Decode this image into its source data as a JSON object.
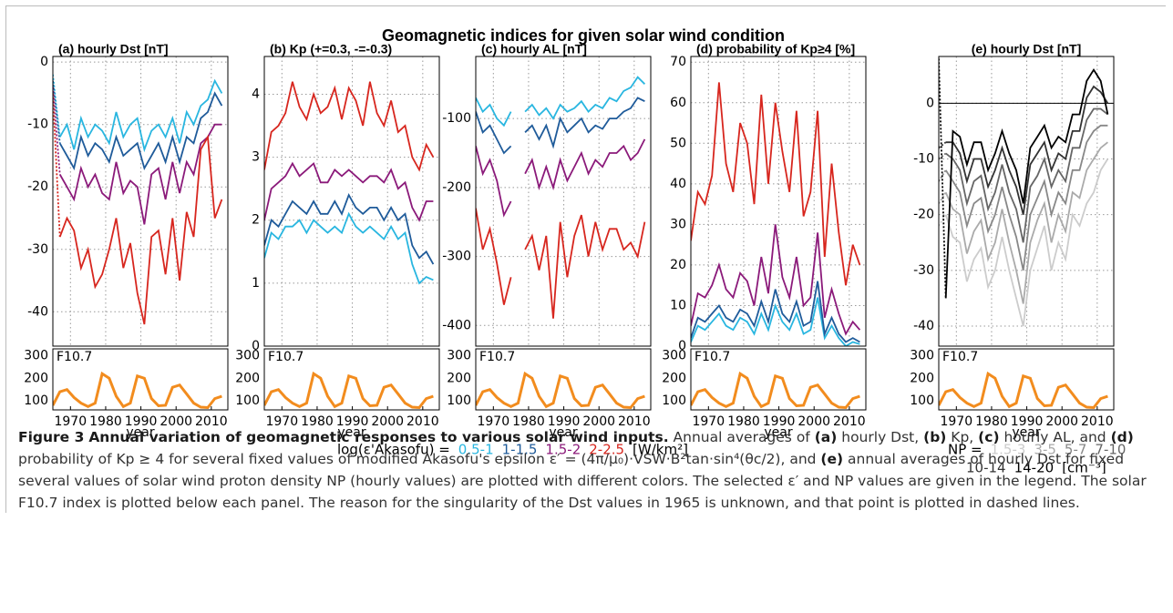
{
  "title": "Geomagnetic indices for given solar wind condition",
  "chart_data": [
    {
      "type": "line",
      "title": "(a) hourly Dst [nT]",
      "xlabel": "year",
      "dashed_first": true,
      "grid": true,
      "x": [
        1965,
        1967,
        1969,
        1971,
        1973,
        1975,
        1977,
        1979,
        1981,
        1983,
        1985,
        1987,
        1989,
        1991,
        1993,
        1995,
        1997,
        1999,
        2001,
        2003,
        2005,
        2007,
        2009,
        2011,
        2013
      ],
      "xlim": [
        1965,
        2014.7
      ],
      "xticks": [
        1970,
        1980,
        1990,
        2000,
        2010
      ],
      "ylim": [
        -45.5,
        0.9
      ],
      "yticks": [
        0,
        -10,
        -20,
        -30,
        -40
      ],
      "series": [
        {
          "name": "0.5-1",
          "color": "#29b6e0",
          "values": [
            -2,
            -12,
            -10,
            -14,
            -9,
            -12,
            -10,
            -11,
            -13,
            -8,
            -12,
            -10,
            -9,
            -14,
            -11,
            -10,
            -12,
            -9,
            -13,
            -8,
            -10,
            -7,
            -6,
            -3,
            -5
          ]
        },
        {
          "name": "1-1.5",
          "color": "#1f5b9a",
          "values": [
            -3,
            -13,
            -15,
            -17,
            -12,
            -15,
            -13,
            -14,
            -16,
            -12,
            -15,
            -14,
            -13,
            -17,
            -15,
            -13,
            -16,
            -12,
            -16,
            -12,
            -13,
            -9,
            -8,
            -5,
            -7
          ]
        },
        {
          "name": "1.5-2",
          "color": "#8b1a7a",
          "values": [
            -4,
            -18,
            -20,
            -22,
            -17,
            -20,
            -18,
            -21,
            -22,
            -16,
            -21,
            -19,
            -20,
            -26,
            -18,
            -17,
            -22,
            -16,
            -21,
            -16,
            -18,
            -13,
            -12,
            -10,
            -10
          ]
        },
        {
          "name": "2-2.5",
          "color": "#d7261e",
          "values": [
            -5,
            -28,
            -25,
            -27,
            -33,
            -30,
            -36,
            -34,
            -30,
            -25,
            -33,
            -29,
            -37,
            -42,
            -28,
            -27,
            -34,
            -25,
            -35,
            -24,
            -28,
            -14,
            -12,
            -25,
            -22
          ]
        }
      ]
    },
    {
      "type": "line",
      "title": "(b) Kp (+=0.3, -=-0.3)",
      "xlabel": "year",
      "grid": true,
      "x": [
        1965,
        1967,
        1969,
        1971,
        1973,
        1975,
        1977,
        1979,
        1981,
        1983,
        1985,
        1987,
        1989,
        1991,
        1993,
        1995,
        1997,
        1999,
        2001,
        2003,
        2005,
        2007,
        2009,
        2011,
        2013
      ],
      "xlim": [
        1965,
        2014.7
      ],
      "xticks": [
        1970,
        1980,
        1990,
        2000,
        2010
      ],
      "ylim": [
        0,
        4.6
      ],
      "yticks": [
        0,
        1,
        2,
        3,
        4
      ],
      "series": [
        {
          "color": "#29b6e0",
          "values": [
            1.4,
            1.8,
            1.7,
            1.9,
            1.9,
            2.0,
            1.8,
            2.0,
            1.9,
            1.8,
            1.9,
            1.8,
            2.1,
            1.9,
            1.8,
            1.9,
            1.8,
            1.7,
            1.9,
            1.7,
            1.8,
            1.3,
            1.0,
            1.1,
            1.05
          ]
        },
        {
          "color": "#1f5b9a",
          "values": [
            1.6,
            2.0,
            1.9,
            2.1,
            2.3,
            2.2,
            2.1,
            2.3,
            2.1,
            2.1,
            2.3,
            2.1,
            2.4,
            2.2,
            2.1,
            2.2,
            2.2,
            2.0,
            2.2,
            2.0,
            2.1,
            1.6,
            1.4,
            1.5,
            1.3
          ]
        },
        {
          "color": "#8b1a7a",
          "values": [
            2.0,
            2.5,
            2.6,
            2.7,
            2.9,
            2.7,
            2.8,
            2.9,
            2.6,
            2.6,
            2.8,
            2.7,
            2.8,
            2.7,
            2.6,
            2.7,
            2.7,
            2.6,
            2.8,
            2.5,
            2.6,
            2.2,
            2.0,
            2.3,
            2.3
          ]
        },
        {
          "color": "#d7261e",
          "values": [
            2.8,
            3.4,
            3.5,
            3.7,
            4.2,
            3.8,
            3.6,
            4.0,
            3.7,
            3.8,
            4.1,
            3.6,
            4.1,
            3.9,
            3.5,
            4.2,
            3.7,
            3.5,
            3.9,
            3.4,
            3.5,
            3.0,
            2.8,
            3.2,
            3.0
          ]
        }
      ]
    },
    {
      "type": "line",
      "title": "(c) hourly AL [nT]",
      "xlabel": "year",
      "grid": true,
      "x": [
        1965,
        1967,
        1969,
        1971,
        1973,
        1975,
        1977,
        1979,
        1981,
        1983,
        1985,
        1987,
        1989,
        1991,
        1993,
        1995,
        1997,
        1999,
        2001,
        2003,
        2005,
        2007,
        2009,
        2011,
        2013
      ],
      "xlim": [
        1965,
        2014.7
      ],
      "xticks": [
        1970,
        1980,
        1990,
        2000,
        2010
      ],
      "ylim": [
        -430,
        -10
      ],
      "yticks": [
        -100,
        -200,
        -300,
        -400
      ],
      "series": [
        {
          "color": "#29b6e0",
          "values": [
            -70,
            -90,
            -80,
            -100,
            -110,
            -90,
            null,
            -90,
            -80,
            -95,
            -85,
            -100,
            -80,
            -90,
            -85,
            -75,
            -90,
            -80,
            -85,
            -70,
            -75,
            -60,
            -55,
            -40,
            -50
          ]
        },
        {
          "color": "#1f5b9a",
          "values": [
            -90,
            -120,
            -110,
            -130,
            -150,
            -140,
            null,
            -120,
            -110,
            -130,
            -110,
            -140,
            -100,
            -120,
            -110,
            -100,
            -120,
            -110,
            -115,
            -100,
            -100,
            -90,
            -85,
            -70,
            -75
          ]
        },
        {
          "color": "#8b1a7a",
          "values": [
            -140,
            -180,
            -160,
            -190,
            -240,
            -220,
            null,
            -180,
            -160,
            -200,
            -170,
            -200,
            -160,
            -190,
            -170,
            -150,
            -180,
            -160,
            -170,
            -150,
            -150,
            -140,
            -160,
            -150,
            -130
          ]
        },
        {
          "color": "#d7261e",
          "values": [
            -230,
            -290,
            -260,
            -310,
            -370,
            -330,
            null,
            -290,
            -270,
            -320,
            -270,
            -390,
            -250,
            -330,
            -270,
            -240,
            -300,
            -250,
            -290,
            -260,
            -260,
            -290,
            -280,
            -300,
            -250
          ]
        }
      ]
    },
    {
      "type": "line",
      "title": "(d) probability of Kp≥4 [%]",
      "xlabel": "year",
      "grid": true,
      "x": [
        1965,
        1967,
        1969,
        1971,
        1973,
        1975,
        1977,
        1979,
        1981,
        1983,
        1985,
        1987,
        1989,
        1991,
        1993,
        1995,
        1997,
        1999,
        2001,
        2003,
        2005,
        2007,
        2009,
        2011,
        2013
      ],
      "xlim": [
        1965,
        2014.7
      ],
      "xticks": [
        1970,
        1980,
        1990,
        2000,
        2010
      ],
      "ylim": [
        0,
        71.4
      ],
      "yticks": [
        0,
        10,
        20,
        30,
        40,
        50,
        60,
        70
      ],
      "series": [
        {
          "color": "#29b6e0",
          "values": [
            1,
            5,
            4,
            6,
            8,
            5,
            4,
            7,
            6,
            3,
            8,
            4,
            10,
            6,
            4,
            8,
            3,
            4,
            12,
            2,
            5,
            2,
            0,
            1,
            0.5
          ]
        },
        {
          "color": "#1f5b9a",
          "values": [
            2,
            7,
            6,
            8,
            10,
            7,
            6,
            9,
            8,
            5,
            11,
            6,
            14,
            8,
            6,
            11,
            5,
            6,
            16,
            3,
            7,
            3,
            1,
            2,
            1
          ]
        },
        {
          "color": "#8b1a7a",
          "values": [
            5,
            13,
            12,
            15,
            20,
            14,
            12,
            18,
            16,
            10,
            22,
            13,
            30,
            17,
            12,
            22,
            10,
            12,
            28,
            7,
            14,
            8,
            3,
            6,
            4
          ]
        },
        {
          "color": "#d7261e",
          "values": [
            26,
            38,
            35,
            42,
            65,
            45,
            38,
            55,
            50,
            35,
            62,
            40,
            60,
            48,
            38,
            58,
            32,
            38,
            58,
            22,
            45,
            28,
            15,
            25,
            20
          ]
        }
      ]
    },
    {
      "type": "line",
      "title": "(e) hourly Dst [nT]",
      "xlabel": "year",
      "dashed_first": true,
      "grid": true,
      "hline": 0,
      "x": [
        1965,
        1967,
        1969,
        1971,
        1973,
        1975,
        1977,
        1979,
        1981,
        1983,
        1985,
        1987,
        1989,
        1991,
        1993,
        1995,
        1997,
        1999,
        2001,
        2003,
        2005,
        2007,
        2009,
        2011,
        2013
      ],
      "xlim": [
        1965,
        2014.7
      ],
      "xticks": [
        1970,
        1980,
        1990,
        2000,
        2010
      ],
      "ylim": [
        -43.6,
        8.4
      ],
      "yticks": [
        0,
        -10,
        -20,
        -30,
        -40
      ],
      "series": [
        {
          "name": "1.5-3",
          "color": "#cccccc",
          "values": [
            -22,
            -20,
            -24,
            -25,
            -32,
            -28,
            -26,
            -33,
            -30,
            -24,
            -30,
            -35,
            -40,
            -30,
            -26,
            -22,
            -30,
            -25,
            -28,
            -20,
            -22,
            -18,
            -16,
            -12,
            -10
          ]
        },
        {
          "name": "3-5",
          "color": "#aaaaaa",
          "values": [
            -18,
            -16,
            -19,
            -20,
            -27,
            -23,
            -21,
            -28,
            -25,
            -19,
            -25,
            -30,
            -36,
            -25,
            -21,
            -18,
            -25,
            -20,
            -23,
            -16,
            -17,
            -12,
            -10,
            -8,
            -7
          ]
        },
        {
          "name": "5-7",
          "color": "#888888",
          "values": [
            -14,
            -12,
            -14,
            -16,
            -22,
            -18,
            -17,
            -23,
            -20,
            -15,
            -20,
            -24,
            -30,
            -20,
            -17,
            -14,
            -20,
            -16,
            -18,
            -12,
            -12,
            -7,
            -5,
            -4,
            -4
          ]
        },
        {
          "name": "7-10",
          "color": "#666666",
          "values": [
            -10,
            -9,
            -10,
            -12,
            -18,
            -14,
            -13,
            -19,
            -16,
            -11,
            -16,
            -19,
            -25,
            -15,
            -13,
            -10,
            -15,
            -12,
            -14,
            -8,
            -8,
            -3,
            -1,
            -1,
            -2
          ]
        },
        {
          "name": "10-14",
          "color": "#333333",
          "values": [
            -8,
            -7,
            -7,
            -9,
            -14,
            -10,
            -10,
            -15,
            -12,
            -8,
            -12,
            -15,
            -20,
            -11,
            -9,
            -7,
            -12,
            -9,
            -10,
            -5,
            -5,
            1,
            3,
            2,
            0
          ]
        },
        {
          "name": "14-20",
          "color": "#000000",
          "values": [
            8,
            -35,
            -5,
            -6,
            -11,
            -7,
            -7,
            -12,
            -9,
            -5,
            -9,
            -12,
            -18,
            -8,
            -6,
            -4,
            -8,
            -6,
            -7,
            -2,
            -2,
            4,
            6,
            4,
            -2
          ]
        }
      ]
    }
  ],
  "f107": {
    "label": "F10.7",
    "color": "#f28c1e",
    "ylim": [
      60,
      330
    ],
    "yticks": [
      100,
      200,
      300
    ],
    "x": [
      1965,
      1967,
      1969,
      1971,
      1973,
      1975,
      1977,
      1979,
      1981,
      1983,
      1985,
      1987,
      1989,
      1991,
      1993,
      1995,
      1997,
      1999,
      2001,
      2003,
      2005,
      2007,
      2009,
      2011,
      2013
    ],
    "values": [
      80,
      140,
      150,
      115,
      90,
      75,
      90,
      220,
      200,
      120,
      75,
      90,
      210,
      200,
      110,
      78,
      80,
      160,
      170,
      130,
      90,
      72,
      70,
      110,
      120
    ]
  },
  "legends": [
    {
      "prefix": "log(ε'Akasofu) =",
      "unit": "[W/km²]"
    },
    {
      "prefix": "NP =",
      "unit": "[cm⁻³]"
    }
  ],
  "caption": {
    "label": "Figure 3",
    "title": "Annual variation of geomagnetic responses to various solar wind inputs.",
    "parts": [
      {
        "t": " Annual averages of "
      },
      {
        "t": "(a)",
        "b": true
      },
      {
        "t": " hourly Dst, "
      },
      {
        "t": "(b)",
        "b": true
      },
      {
        "t": " Kp, "
      },
      {
        "t": "(c)",
        "b": true
      },
      {
        "t": " hourly AL, and "
      },
      {
        "t": "(d)",
        "b": true
      },
      {
        "t": " probability of Kp ≥ 4 for several fixed values of modified Akasofu's epsilon ε′ = (4π/μ₀)·VSW·B²tan·sin⁴(θc/2), and "
      },
      {
        "t": "(e)",
        "b": true
      },
      {
        "t": " annual averages of hourly Dst for fixed several values of solar wind proton density NP (hourly values) are plotted with different colors. The selected ε′ and NP values are given in the legend. The solar F10.7 index is plotted below each panel. The reason for the singularity of the Dst values in 1965 is unknown, and that point is plotted in dashed lines."
      }
    ]
  }
}
